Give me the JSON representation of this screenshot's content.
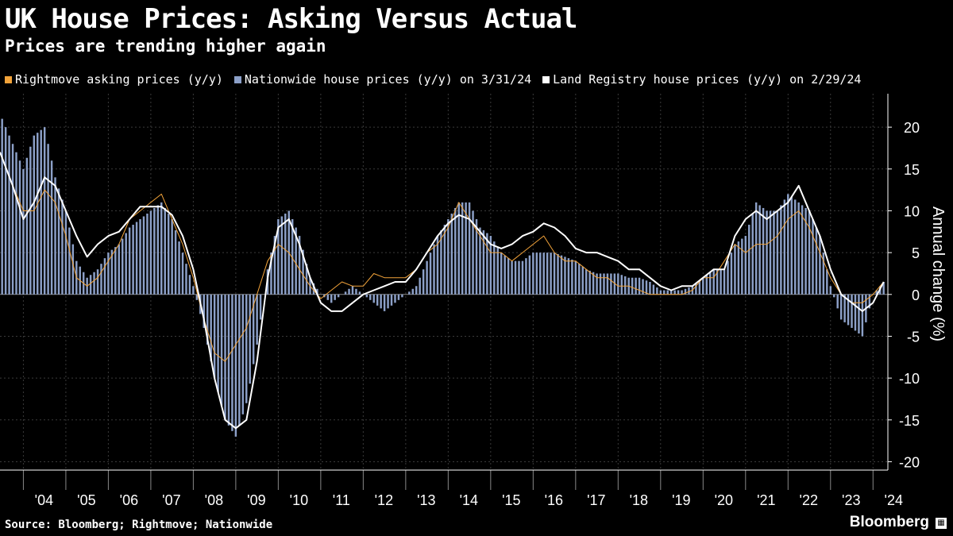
{
  "title": "UK House Prices: Asking Versus Actual",
  "subtitle": "Prices are trending higher again",
  "legend": [
    {
      "label": "Rightmove asking prices (y/y)",
      "color": "#f2a33a"
    },
    {
      "label": "Nationwide house prices (y/y) on 3/31/24",
      "color": "#8ca0c8"
    },
    {
      "label": "Land Registry house prices (y/y) on 2/29/24",
      "color": "#ffffff"
    }
  ],
  "source": "Source: Bloomberg; Rightmove; Nationwide",
  "brand": "Bloomberg",
  "chart_data": {
    "type": "bar+line",
    "ylabel": "Annual change (%)",
    "ylim": [
      -21,
      24
    ],
    "yticks": [
      20,
      15,
      10,
      5,
      0,
      -5,
      -10,
      -15,
      -20
    ],
    "xlim": [
      2003.45,
      2024.35
    ],
    "xticks": [
      {
        "label": "'04",
        "year": 2004
      },
      {
        "label": "'05",
        "year": 2005
      },
      {
        "label": "'06",
        "year": 2006
      },
      {
        "label": "'07",
        "year": 2007
      },
      {
        "label": "'08",
        "year": 2008
      },
      {
        "label": "'09",
        "year": 2009
      },
      {
        "label": "'10",
        "year": 2010
      },
      {
        "label": "'11",
        "year": 2011
      },
      {
        "label": "'12",
        "year": 2012
      },
      {
        "label": "'13",
        "year": 2013
      },
      {
        "label": "'14",
        "year": 2014
      },
      {
        "label": "'15",
        "year": 2015
      },
      {
        "label": "'16",
        "year": 2016
      },
      {
        "label": "'17",
        "year": 2017
      },
      {
        "label": "'18",
        "year": 2018
      },
      {
        "label": "'19",
        "year": 2019
      },
      {
        "label": "'20",
        "year": 2020
      },
      {
        "label": "'21",
        "year": 2021
      },
      {
        "label": "'22",
        "year": 2022
      },
      {
        "label": "'23",
        "year": 2023
      },
      {
        "label": "'24",
        "year": 2024
      }
    ],
    "series": [
      {
        "name": "Nationwide house prices (y/y)",
        "kind": "bar",
        "color": "#8ca0c8",
        "points": [
          [
            2003.5,
            21
          ],
          [
            2003.75,
            18
          ],
          [
            2004.0,
            15
          ],
          [
            2004.25,
            19
          ],
          [
            2004.5,
            20
          ],
          [
            2004.75,
            14
          ],
          [
            2005.0,
            10
          ],
          [
            2005.25,
            4
          ],
          [
            2005.5,
            2
          ],
          [
            2005.75,
            3
          ],
          [
            2006.0,
            5
          ],
          [
            2006.25,
            6
          ],
          [
            2006.5,
            8
          ],
          [
            2006.75,
            9
          ],
          [
            2007.0,
            10
          ],
          [
            2007.25,
            11
          ],
          [
            2007.5,
            9
          ],
          [
            2007.75,
            5
          ],
          [
            2008.0,
            1
          ],
          [
            2008.25,
            -4
          ],
          [
            2008.5,
            -10
          ],
          [
            2008.75,
            -15
          ],
          [
            2009.0,
            -17
          ],
          [
            2009.25,
            -13
          ],
          [
            2009.5,
            -6
          ],
          [
            2009.75,
            3
          ],
          [
            2010.0,
            9
          ],
          [
            2010.25,
            10
          ],
          [
            2010.5,
            7
          ],
          [
            2010.75,
            2
          ],
          [
            2011.0,
            0
          ],
          [
            2011.25,
            -1
          ],
          [
            2011.5,
            0
          ],
          [
            2011.75,
            1
          ],
          [
            2012.0,
            0
          ],
          [
            2012.25,
            -1
          ],
          [
            2012.5,
            -2
          ],
          [
            2012.75,
            -1
          ],
          [
            2013.0,
            0
          ],
          [
            2013.25,
            1
          ],
          [
            2013.5,
            4
          ],
          [
            2013.75,
            7
          ],
          [
            2014.0,
            9
          ],
          [
            2014.25,
            11
          ],
          [
            2014.5,
            11
          ],
          [
            2014.75,
            8
          ],
          [
            2015.0,
            7
          ],
          [
            2015.25,
            5
          ],
          [
            2015.5,
            4
          ],
          [
            2015.75,
            4
          ],
          [
            2016.0,
            5
          ],
          [
            2016.25,
            5
          ],
          [
            2016.5,
            5
          ],
          [
            2016.75,
            4.5
          ],
          [
            2017.0,
            4
          ],
          [
            2017.25,
            3
          ],
          [
            2017.5,
            2.5
          ],
          [
            2017.75,
            2.5
          ],
          [
            2018.0,
            2.5
          ],
          [
            2018.25,
            2
          ],
          [
            2018.5,
            2
          ],
          [
            2018.75,
            1.5
          ],
          [
            2019.0,
            0.5
          ],
          [
            2019.25,
            0.5
          ],
          [
            2019.5,
            0.5
          ],
          [
            2019.75,
            1
          ],
          [
            2020.0,
            2
          ],
          [
            2020.25,
            3
          ],
          [
            2020.5,
            3
          ],
          [
            2020.75,
            6
          ],
          [
            2021.0,
            7
          ],
          [
            2021.25,
            11
          ],
          [
            2021.5,
            10
          ],
          [
            2021.75,
            10
          ],
          [
            2022.0,
            12
          ],
          [
            2022.25,
            11
          ],
          [
            2022.5,
            10
          ],
          [
            2022.75,
            7
          ],
          [
            2023.0,
            1
          ],
          [
            2023.25,
            -3
          ],
          [
            2023.5,
            -4
          ],
          [
            2023.75,
            -5
          ],
          [
            2024.0,
            0
          ],
          [
            2024.25,
            1.5
          ]
        ]
      },
      {
        "name": "Rightmove asking prices (y/y)",
        "kind": "line",
        "color": "#f2a33a",
        "width": 1,
        "points": [
          [
            2003.45,
            17
          ],
          [
            2003.75,
            13
          ],
          [
            2004.0,
            10
          ],
          [
            2004.25,
            10
          ],
          [
            2004.5,
            12.5
          ],
          [
            2004.75,
            11
          ],
          [
            2005.0,
            7
          ],
          [
            2005.25,
            2
          ],
          [
            2005.5,
            1
          ],
          [
            2005.75,
            2
          ],
          [
            2006.0,
            4
          ],
          [
            2006.25,
            6
          ],
          [
            2006.5,
            9
          ],
          [
            2006.75,
            10
          ],
          [
            2007.0,
            11
          ],
          [
            2007.25,
            12
          ],
          [
            2007.5,
            9
          ],
          [
            2007.75,
            6
          ],
          [
            2008.0,
            2
          ],
          [
            2008.25,
            -3
          ],
          [
            2008.5,
            -7
          ],
          [
            2008.75,
            -8
          ],
          [
            2009.0,
            -6
          ],
          [
            2009.25,
            -4
          ],
          [
            2009.5,
            0
          ],
          [
            2009.75,
            4
          ],
          [
            2010.0,
            6
          ],
          [
            2010.25,
            5
          ],
          [
            2010.5,
            3
          ],
          [
            2010.75,
            1
          ],
          [
            2011.0,
            -0.5
          ],
          [
            2011.25,
            0.5
          ],
          [
            2011.5,
            1.5
          ],
          [
            2011.75,
            1
          ],
          [
            2012.0,
            1
          ],
          [
            2012.25,
            2.5
          ],
          [
            2012.5,
            2
          ],
          [
            2012.75,
            2
          ],
          [
            2013.0,
            2
          ],
          [
            2013.25,
            3
          ],
          [
            2013.5,
            5
          ],
          [
            2013.75,
            6
          ],
          [
            2014.0,
            8
          ],
          [
            2014.25,
            11
          ],
          [
            2014.5,
            9
          ],
          [
            2014.75,
            7
          ],
          [
            2015.0,
            5
          ],
          [
            2015.25,
            5
          ],
          [
            2015.5,
            4
          ],
          [
            2015.75,
            5
          ],
          [
            2016.0,
            6
          ],
          [
            2016.25,
            7
          ],
          [
            2016.5,
            5
          ],
          [
            2016.75,
            4
          ],
          [
            2017.0,
            4
          ],
          [
            2017.25,
            3
          ],
          [
            2017.5,
            2
          ],
          [
            2017.75,
            2
          ],
          [
            2018.0,
            1
          ],
          [
            2018.25,
            1
          ],
          [
            2018.5,
            0.5
          ],
          [
            2018.75,
            0
          ],
          [
            2019.0,
            0
          ],
          [
            2019.25,
            0
          ],
          [
            2019.5,
            0
          ],
          [
            2019.75,
            0.5
          ],
          [
            2020.0,
            2
          ],
          [
            2020.25,
            2
          ],
          [
            2020.5,
            4
          ],
          [
            2020.75,
            6
          ],
          [
            2021.0,
            5
          ],
          [
            2021.25,
            6
          ],
          [
            2021.5,
            6
          ],
          [
            2021.75,
            7
          ],
          [
            2022.0,
            9
          ],
          [
            2022.25,
            10
          ],
          [
            2022.5,
            8
          ],
          [
            2022.75,
            5
          ],
          [
            2023.0,
            2
          ],
          [
            2023.25,
            0
          ],
          [
            2023.5,
            -1
          ],
          [
            2023.75,
            -1
          ],
          [
            2024.0,
            0
          ],
          [
            2024.25,
            1.5
          ]
        ]
      },
      {
        "name": "Land Registry house prices (y/y)",
        "kind": "line",
        "color": "#ffffff",
        "width": 2,
        "points": [
          [
            2003.45,
            17
          ],
          [
            2003.75,
            13
          ],
          [
            2004.0,
            9
          ],
          [
            2004.25,
            11
          ],
          [
            2004.5,
            14
          ],
          [
            2004.75,
            13
          ],
          [
            2005.0,
            10
          ],
          [
            2005.25,
            7
          ],
          [
            2005.5,
            4.5
          ],
          [
            2005.75,
            6
          ],
          [
            2006.0,
            7
          ],
          [
            2006.25,
            7.5
          ],
          [
            2006.5,
            9
          ],
          [
            2006.75,
            10.5
          ],
          [
            2007.0,
            10.5
          ],
          [
            2007.25,
            10.5
          ],
          [
            2007.5,
            9.5
          ],
          [
            2007.75,
            7
          ],
          [
            2008.0,
            3
          ],
          [
            2008.25,
            -3
          ],
          [
            2008.5,
            -10
          ],
          [
            2008.75,
            -15
          ],
          [
            2009.0,
            -16
          ],
          [
            2009.25,
            -15
          ],
          [
            2009.5,
            -8
          ],
          [
            2009.75,
            2
          ],
          [
            2010.0,
            8
          ],
          [
            2010.25,
            9
          ],
          [
            2010.5,
            6
          ],
          [
            2010.75,
            2
          ],
          [
            2011.0,
            -1
          ],
          [
            2011.25,
            -2
          ],
          [
            2011.5,
            -2
          ],
          [
            2011.75,
            -1
          ],
          [
            2012.0,
            0
          ],
          [
            2012.25,
            0.5
          ],
          [
            2012.5,
            1
          ],
          [
            2012.75,
            1.5
          ],
          [
            2013.0,
            1.5
          ],
          [
            2013.25,
            3
          ],
          [
            2013.5,
            5
          ],
          [
            2013.75,
            7
          ],
          [
            2014.0,
            8.5
          ],
          [
            2014.25,
            9.5
          ],
          [
            2014.5,
            9
          ],
          [
            2014.75,
            7.5
          ],
          [
            2015.0,
            6
          ],
          [
            2015.25,
            5.5
          ],
          [
            2015.5,
            6
          ],
          [
            2015.75,
            7
          ],
          [
            2016.0,
            7.5
          ],
          [
            2016.25,
            8.5
          ],
          [
            2016.5,
            8
          ],
          [
            2016.75,
            7
          ],
          [
            2017.0,
            5.5
          ],
          [
            2017.25,
            5
          ],
          [
            2017.5,
            5
          ],
          [
            2017.75,
            4.5
          ],
          [
            2018.0,
            4
          ],
          [
            2018.25,
            3
          ],
          [
            2018.5,
            3
          ],
          [
            2018.75,
            2
          ],
          [
            2019.0,
            1
          ],
          [
            2019.25,
            0.5
          ],
          [
            2019.5,
            1
          ],
          [
            2019.75,
            1
          ],
          [
            2020.0,
            2
          ],
          [
            2020.25,
            3
          ],
          [
            2020.5,
            3
          ],
          [
            2020.75,
            7
          ],
          [
            2021.0,
            9
          ],
          [
            2021.25,
            10
          ],
          [
            2021.5,
            9
          ],
          [
            2021.75,
            10
          ],
          [
            2022.0,
            11
          ],
          [
            2022.25,
            13
          ],
          [
            2022.5,
            10
          ],
          [
            2022.75,
            7
          ],
          [
            2023.0,
            3
          ],
          [
            2023.25,
            0
          ],
          [
            2023.5,
            -1
          ],
          [
            2023.75,
            -2
          ],
          [
            2024.0,
            -1
          ],
          [
            2024.25,
            1.5
          ]
        ]
      }
    ]
  }
}
